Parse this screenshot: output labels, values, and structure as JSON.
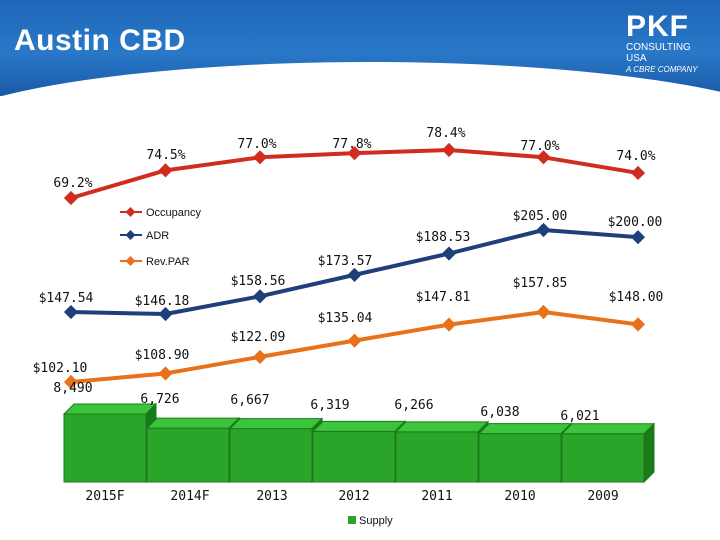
{
  "header": {
    "title": "Austin CBD",
    "logo_mark": "PKF",
    "logo_line1": "CONSULTING",
    "logo_line2": "USA",
    "logo_sub": "A CBRE COMPANY"
  },
  "colors": {
    "occupancy": "#d02d20",
    "adr": "#1e3f7a",
    "revpar": "#e8711a",
    "supply": "#2aa52a",
    "supply_dark": "#197a19",
    "supply_top": "#3cc43c"
  },
  "chart_data": {
    "type": "line+bar",
    "categories": [
      "2015F",
      "2014F",
      "2013",
      "2012",
      "2011",
      "2010",
      "2009"
    ],
    "series": [
      {
        "name": "Occupancy",
        "key": "occupancy",
        "labels": [
          "69.2%",
          "74.5%",
          "77.0%",
          "77.8%",
          "78.4%",
          "77.0%",
          "74.0%"
        ],
        "values": [
          69.2,
          74.5,
          77.0,
          77.8,
          78.4,
          77.0,
          74.0
        ]
      },
      {
        "name": "ADR",
        "key": "adr",
        "labels": [
          "$147.54",
          "$146.18",
          "$158.56",
          "$173.57",
          "$188.53",
          "$205.00",
          "$200.00"
        ],
        "values": [
          147.54,
          146.18,
          158.56,
          173.57,
          188.53,
          205.0,
          200.0
        ]
      },
      {
        "name": "Rev.PAR",
        "key": "revpar",
        "labels": [
          "$102.10",
          "$108.90",
          "$122.09",
          "$135.04",
          "$147.81",
          "$157.85",
          "$148.00"
        ],
        "values": [
          102.1,
          108.9,
          122.09,
          135.04,
          147.81,
          157.85,
          148.0
        ]
      }
    ],
    "supply": {
      "name": "Supply",
      "labels": [
        "8,490",
        "6,726",
        "6,667",
        "6,319",
        "6,266",
        "6,038",
        "6,021"
      ],
      "values": [
        8490,
        6726,
        6667,
        6319,
        6266,
        6038,
        6021
      ]
    },
    "legend": [
      "Occupancy",
      "ADR",
      "Rev.PAR"
    ],
    "bottom_legend": "Supply"
  }
}
